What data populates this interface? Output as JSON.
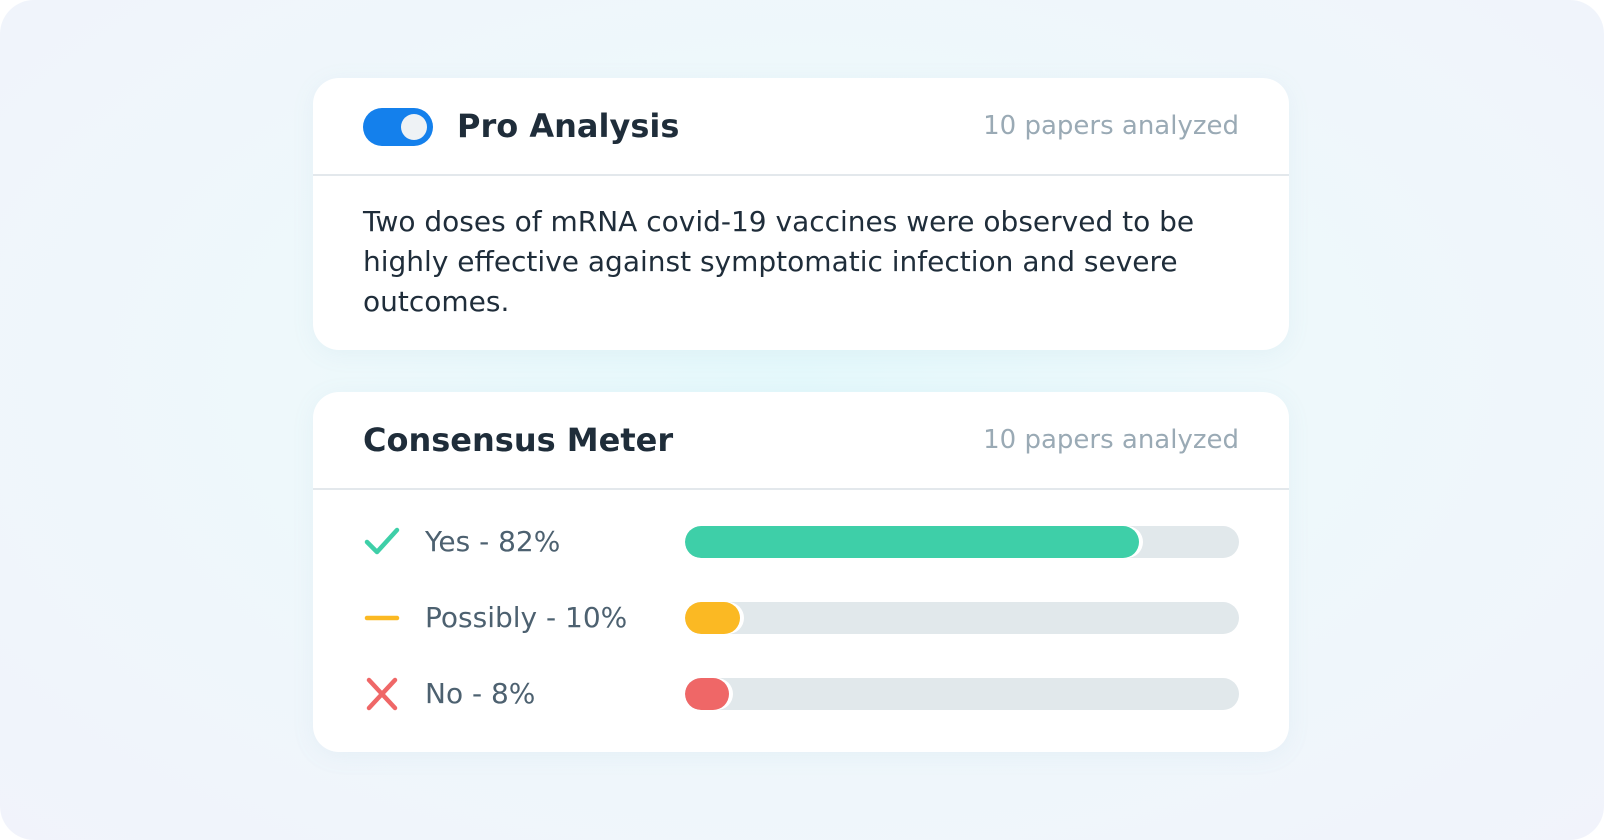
{
  "pro_analysis": {
    "title": "Pro Analysis",
    "papers": "10 papers analyzed",
    "toggle_on": true,
    "summary": "Two doses of mRNA covid-19 vaccines were observed to be highly effective against symptomatic infection and severe outcomes."
  },
  "consensus_meter": {
    "title": "Consensus Meter",
    "papers": "10 papers analyzed",
    "rows": [
      {
        "label": "Yes - 82%",
        "value": 82,
        "color": "#3ecfa8"
      },
      {
        "label": "Possibly - 10%",
        "value": 10,
        "color": "#fbb923"
      },
      {
        "label": "No - 8%",
        "value": 8,
        "color": "#ef6767"
      }
    ]
  }
}
